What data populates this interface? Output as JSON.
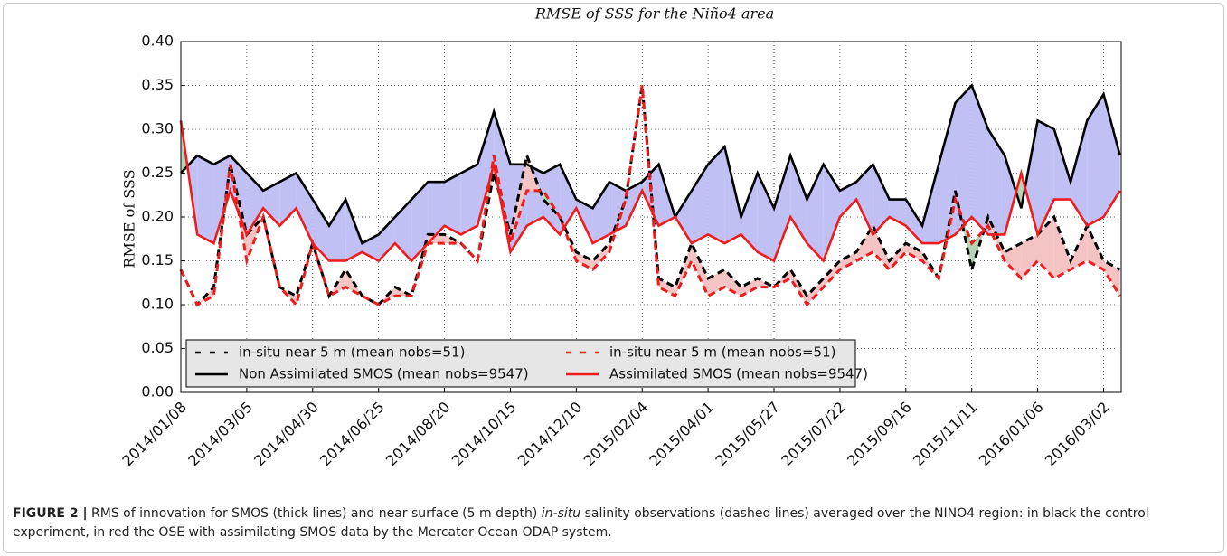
{
  "chart_data": {
    "type": "line",
    "title": "RMSE of SSS for the Niño4 area",
    "y_label": "RMSE of SSS",
    "x": [
      "2014/01/08",
      "2014/01/22",
      "2014/02/05",
      "2014/02/19",
      "2014/03/05",
      "2014/03/19",
      "2014/04/02",
      "2014/04/16",
      "2014/04/30",
      "2014/05/14",
      "2014/05/28",
      "2014/06/11",
      "2014/06/25",
      "2014/07/09",
      "2014/07/23",
      "2014/08/06",
      "2014/08/20",
      "2014/09/03",
      "2014/09/17",
      "2014/10/01",
      "2014/10/15",
      "2014/10/29",
      "2014/11/12",
      "2014/11/26",
      "2014/12/10",
      "2014/12/24",
      "2015/01/07",
      "2015/01/21",
      "2015/02/04",
      "2015/02/18",
      "2015/03/04",
      "2015/03/18",
      "2015/04/01",
      "2015/04/15",
      "2015/04/29",
      "2015/05/13",
      "2015/05/27",
      "2015/06/10",
      "2015/06/24",
      "2015/07/08",
      "2015/07/22",
      "2015/08/05",
      "2015/08/19",
      "2015/09/02",
      "2015/09/16",
      "2015/09/30",
      "2015/10/14",
      "2015/10/28",
      "2015/11/11",
      "2015/11/25",
      "2015/12/09",
      "2015/12/23",
      "2016/01/06",
      "2016/01/20",
      "2016/02/03",
      "2016/02/17",
      "2016/03/02",
      "2016/03/16"
    ],
    "xlim": [
      "2014/01/08",
      "2016/03/17"
    ],
    "xticks": [
      "2014/01/08",
      "2014/03/05",
      "2014/04/30",
      "2014/06/25",
      "2014/08/20",
      "2014/10/15",
      "2014/12/10",
      "2015/02/04",
      "2015/04/01",
      "2015/05/27",
      "2015/07/22",
      "2015/09/16",
      "2015/11/11",
      "2016/01/06",
      "2016/03/02"
    ],
    "ylim": [
      0,
      0.4
    ],
    "yticks": [
      {
        "value": 0,
        "label": "0.00"
      },
      {
        "value": 0.05,
        "label": "0.05"
      },
      {
        "value": 0.1,
        "label": "0.10"
      },
      {
        "value": 0.15,
        "label": "0.15"
      },
      {
        "value": 0.2,
        "label": "0.20"
      },
      {
        "value": 0.25,
        "label": "0.25"
      },
      {
        "value": 0.3,
        "label": "0.30"
      },
      {
        "value": 0.35,
        "label": "0.35"
      },
      {
        "value": 0.4,
        "label": "0.40"
      }
    ],
    "grid": true,
    "legend_location": "lower left",
    "series": [
      {
        "name": "in-situ near 5 m (mean nobs=51)",
        "color": "#000000",
        "style": "dashed",
        "fill_color": "#f4c4c4",
        "values": [
          0.14,
          0.1,
          0.12,
          0.26,
          0.18,
          0.2,
          0.12,
          0.11,
          0.17,
          0.11,
          0.14,
          0.11,
          0.1,
          0.12,
          0.11,
          0.18,
          0.18,
          0.17,
          0.15,
          0.25,
          0.18,
          0.27,
          0.22,
          0.2,
          0.16,
          0.15,
          0.17,
          0.22,
          0.35,
          0.13,
          0.12,
          0.17,
          0.13,
          0.14,
          0.12,
          0.13,
          0.12,
          0.14,
          0.11,
          0.13,
          0.15,
          0.16,
          0.19,
          0.15,
          0.17,
          0.16,
          0.13,
          0.23,
          0.14,
          0.2,
          0.16,
          0.17,
          0.18,
          0.2,
          0.15,
          0.19,
          0.15,
          0.14
        ]
      },
      {
        "name": "Non Assimilated SMOS (mean nobs=9547)",
        "color": "#000000",
        "style": "solid",
        "fill_color": "#c0c0f4",
        "values": [
          0.25,
          0.27,
          0.26,
          0.27,
          0.25,
          0.23,
          0.24,
          0.25,
          0.22,
          0.19,
          0.22,
          0.17,
          0.18,
          0.2,
          0.22,
          0.24,
          0.24,
          0.25,
          0.26,
          0.32,
          0.26,
          0.26,
          0.25,
          0.26,
          0.22,
          0.21,
          0.24,
          0.23,
          0.24,
          0.26,
          0.2,
          0.23,
          0.26,
          0.28,
          0.2,
          0.25,
          0.21,
          0.27,
          0.22,
          0.26,
          0.23,
          0.24,
          0.26,
          0.22,
          0.22,
          0.19,
          0.26,
          0.33,
          0.35,
          0.3,
          0.27,
          0.21,
          0.31,
          0.3,
          0.24,
          0.31,
          0.34,
          0.27
        ]
      },
      {
        "name": "in-situ near 5 m (mean nobs=51)",
        "color": "#ee1c1c",
        "style": "dashed",
        "fill_color": "#b4d4b4",
        "values": [
          0.14,
          0.1,
          0.11,
          0.26,
          0.15,
          0.2,
          0.12,
          0.1,
          0.17,
          0.11,
          0.12,
          0.11,
          0.1,
          0.11,
          0.11,
          0.17,
          0.17,
          0.17,
          0.15,
          0.27,
          0.17,
          0.23,
          0.23,
          0.2,
          0.15,
          0.14,
          0.16,
          0.22,
          0.35,
          0.12,
          0.11,
          0.15,
          0.11,
          0.12,
          0.11,
          0.12,
          0.12,
          0.13,
          0.1,
          0.12,
          0.14,
          0.15,
          0.16,
          0.14,
          0.16,
          0.15,
          0.13,
          0.22,
          0.17,
          0.19,
          0.15,
          0.13,
          0.15,
          0.13,
          0.14,
          0.15,
          0.14,
          0.11
        ]
      },
      {
        "name": "Assimilated SMOS (mean nobs=9547)",
        "color": "#ee1c1c",
        "style": "solid",
        "fill_color": "#b4d4b4",
        "values": [
          0.31,
          0.18,
          0.17,
          0.23,
          0.18,
          0.21,
          0.19,
          0.21,
          0.17,
          0.15,
          0.15,
          0.16,
          0.15,
          0.17,
          0.15,
          0.17,
          0.19,
          0.18,
          0.19,
          0.26,
          0.16,
          0.19,
          0.2,
          0.18,
          0.21,
          0.17,
          0.18,
          0.19,
          0.23,
          0.19,
          0.2,
          0.17,
          0.18,
          0.17,
          0.18,
          0.16,
          0.15,
          0.2,
          0.17,
          0.15,
          0.2,
          0.22,
          0.18,
          0.2,
          0.19,
          0.17,
          0.17,
          0.18,
          0.2,
          0.18,
          0.18,
          0.25,
          0.18,
          0.22,
          0.22,
          0.19,
          0.2,
          0.23
        ]
      }
    ]
  },
  "caption": {
    "label": "FIGURE 2 |",
    "text_1": "RMS of innovation for SMOS (thick lines) and near surface (5 m depth) ",
    "italic": "in-situ",
    "text_2": " salinity observations (dashed lines) averaged over the NINO4 region: in black the control experiment, in red the OSE with assimilating SMOS data by the Mercator Ocean ODAP system."
  }
}
